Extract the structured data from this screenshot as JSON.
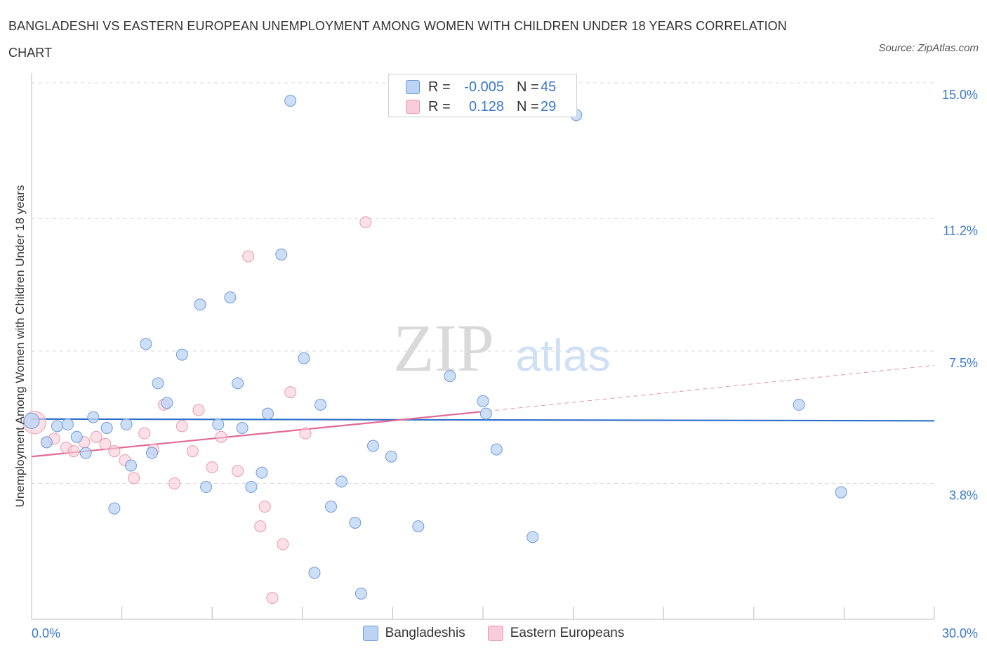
{
  "title": "BANGLADESHI VS EASTERN EUROPEAN UNEMPLOYMENT AMONG WOMEN WITH CHILDREN UNDER 18 YEARS CORRELATION CHART",
  "source": "Source: ZipAtlas.com",
  "watermark": {
    "zip": "ZIP",
    "atlas": "atlas"
  },
  "colors": {
    "blue_fill": "#bcd4f4",
    "blue_stroke": "#6f9ad8",
    "blue_line": "#2f6fcb",
    "pink_fill": "#f8ccd8",
    "pink_stroke": "#e89ab2",
    "pink_line": "#e06a96",
    "tick_label": "#3a78c9",
    "grid": "#d9d9d9"
  },
  "legend_top": {
    "rows": [
      {
        "label": "R =",
        "r": "-0.005",
        "n_label": "N =",
        "n": "45"
      },
      {
        "label": "R =",
        "r": "0.128",
        "n_label": "N =",
        "n": "29"
      }
    ]
  },
  "legend_bottom": [
    "Bangladeshis",
    "Eastern Europeans"
  ],
  "chart_data": {
    "type": "scatter",
    "title": "BANGLADESHI VS EASTERN EUROPEAN UNEMPLOYMENT AMONG WOMEN WITH CHILDREN UNDER 18 YEARS CORRELATION CHART",
    "xlabel": "",
    "ylabel": "Unemployment Among Women with Children Under 18 years",
    "xlim": [
      0,
      30
    ],
    "ylim": [
      0,
      15
    ],
    "x_tick_labels": [
      "0.0%",
      "30.0%"
    ],
    "y_ticks": [
      3.8,
      7.5,
      11.2,
      15.0
    ],
    "y_tick_labels": [
      "3.8%",
      "7.5%",
      "11.2%",
      "15.0%"
    ],
    "grid": "horizontal dashed",
    "legend_position": "top-center",
    "series": [
      {
        "name": "Bangladeshis",
        "r": -0.005,
        "n": 45,
        "trend": {
          "x": [
            0,
            30
          ],
          "y": [
            5.6,
            5.55
          ]
        },
        "points": [
          [
            0.0,
            5.55
          ],
          [
            0.5,
            4.95
          ],
          [
            0.85,
            5.4
          ],
          [
            1.2,
            5.45
          ],
          [
            1.5,
            5.1
          ],
          [
            1.8,
            4.65
          ],
          [
            2.05,
            5.65
          ],
          [
            2.5,
            5.35
          ],
          [
            2.75,
            3.1
          ],
          [
            3.15,
            5.45
          ],
          [
            3.3,
            4.3
          ],
          [
            3.8,
            7.7
          ],
          [
            4.0,
            4.65
          ],
          [
            4.2,
            6.6
          ],
          [
            4.5,
            6.05
          ],
          [
            5.0,
            7.4
          ],
          [
            5.6,
            8.8
          ],
          [
            5.8,
            3.7
          ],
          [
            6.2,
            5.45
          ],
          [
            6.6,
            9.0
          ],
          [
            6.85,
            6.6
          ],
          [
            7.0,
            5.35
          ],
          [
            7.3,
            3.7
          ],
          [
            7.65,
            4.1
          ],
          [
            7.85,
            5.75
          ],
          [
            8.3,
            10.2
          ],
          [
            8.6,
            14.5
          ],
          [
            9.05,
            7.3
          ],
          [
            9.4,
            1.3
          ],
          [
            9.6,
            6.0
          ],
          [
            9.95,
            3.15
          ],
          [
            10.3,
            3.85
          ],
          [
            10.75,
            2.7
          ],
          [
            10.95,
            0.72
          ],
          [
            11.35,
            4.85
          ],
          [
            11.95,
            4.55
          ],
          [
            12.85,
            2.6
          ],
          [
            13.9,
            6.8
          ],
          [
            15.0,
            6.1
          ],
          [
            15.1,
            5.75
          ],
          [
            15.45,
            4.75
          ],
          [
            16.65,
            2.3
          ],
          [
            18.1,
            14.1
          ],
          [
            25.5,
            6.0
          ],
          [
            26.9,
            3.55
          ]
        ]
      },
      {
        "name": "Eastern Europeans",
        "r": 0.128,
        "n": 29,
        "trend": {
          "x": [
            0,
            14.9
          ],
          "y": [
            4.55,
            5.8
          ]
        },
        "trend_extension": {
          "x": [
            14.9,
            30
          ],
          "y": [
            5.8,
            7.1
          ]
        },
        "points": [
          [
            0.1,
            5.5
          ],
          [
            0.5,
            4.95
          ],
          [
            0.75,
            5.05
          ],
          [
            1.15,
            4.8
          ],
          [
            1.4,
            4.7
          ],
          [
            1.75,
            4.95
          ],
          [
            2.15,
            5.1
          ],
          [
            2.45,
            4.9
          ],
          [
            2.75,
            4.7
          ],
          [
            3.1,
            4.45
          ],
          [
            3.4,
            3.95
          ],
          [
            3.75,
            5.2
          ],
          [
            4.05,
            4.75
          ],
          [
            4.4,
            6.0
          ],
          [
            4.75,
            3.8
          ],
          [
            5.0,
            5.4
          ],
          [
            5.35,
            4.7
          ],
          [
            5.55,
            5.85
          ],
          [
            6.0,
            4.25
          ],
          [
            6.3,
            5.1
          ],
          [
            6.85,
            4.15
          ],
          [
            7.2,
            10.15
          ],
          [
            7.6,
            2.6
          ],
          [
            7.75,
            3.15
          ],
          [
            8.0,
            0.6
          ],
          [
            8.35,
            2.1
          ],
          [
            8.6,
            6.35
          ],
          [
            9.1,
            5.2
          ],
          [
            11.1,
            11.1
          ]
        ]
      }
    ]
  }
}
